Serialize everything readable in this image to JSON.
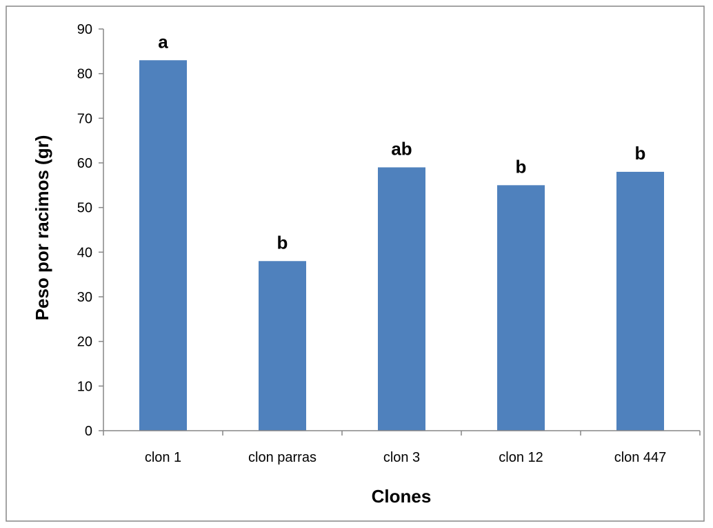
{
  "chart_data": {
    "type": "bar",
    "categories": [
      "clon 1",
      "clon parras",
      "clon 3",
      "clon 12",
      "clon 447"
    ],
    "values": [
      83,
      38,
      59,
      55,
      58
    ],
    "data_labels": [
      "a",
      "b",
      "ab",
      "b",
      "b"
    ],
    "title": "",
    "xlabel": "Clones",
    "ylabel": "Peso por racimos (gr)",
    "ylim": [
      0,
      90
    ],
    "yticks": [
      0,
      10,
      20,
      30,
      40,
      50,
      60,
      70,
      80,
      90
    ],
    "grid": false,
    "legend": "none",
    "bar_color": "#4F81BD",
    "axis_color": "#868686",
    "frame_color": "#868686"
  }
}
